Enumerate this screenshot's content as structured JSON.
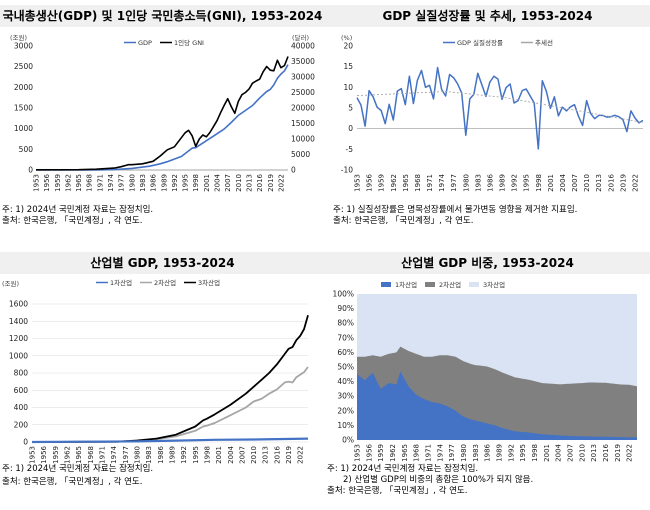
{
  "colors": {
    "blue": "#4472c4",
    "black": "#000000",
    "gray": "#a6a6a6",
    "dark_gray": "#7f7f7f",
    "light_blue": "#dae3f3",
    "title_bg": "#f0f0f0"
  },
  "panels": [
    {
      "id": "p1",
      "title": "국내총생산(GDP) 및 1인당 국민총소득(GNI), 1953-2024",
      "notes": [
        "주: 1) 2024년 국민계정 자료는 잠정치임.",
        "출처: 한국은행, 「국민계정」, 각 연도."
      ]
    },
    {
      "id": "p2",
      "title": "GDP 실질성장률 및 추세, 1953-2024",
      "notes": [
        "주: 1) 실질성장률은 명목성장률에서 물가변동 영향을 제거한 지표임.",
        "출처: 한국은행, 「국민계정」, 각 연도."
      ]
    },
    {
      "id": "p3",
      "title": "산업별 GDP, 1953-2024",
      "notes": [
        "주: 1) 2024년 국민계정 자료는 잠정치임.",
        "출처: 한국은행, 「국민계정」, 각 연도."
      ]
    },
    {
      "id": "p4",
      "title": "산업별 GDP 비중, 1953-2024",
      "notes": [
        "주: 1) 2024년 국민계정 자료는 잠정치임.",
        "2) 산업별 GDP의 비중의 총합은 100%가 되지 않음.",
        "출처: 한국은행, 「국민계정」, 각 연도."
      ]
    }
  ],
  "chart_data": [
    {
      "type": "line",
      "title": "국내총생산(GDP) 및 1인당 국민총소득(GNI), 1953-2024",
      "x_start": 1953,
      "x_end": 2024,
      "x_step": 3,
      "ylim_left": [
        0,
        3000
      ],
      "ylim_right": [
        0,
        40000
      ],
      "yticks_left": [
        "0",
        "500",
        "1000",
        "1500",
        "2000",
        "2500",
        "3000"
      ],
      "yticks_right": [
        "0",
        "5000",
        "10000",
        "15000",
        "20000",
        "25000",
        "30000",
        "35000",
        "40000"
      ],
      "unit_left": "(조원)",
      "unit_right": "(달러)",
      "series": [
        {
          "name": "GDP",
          "axis": "left",
          "color": "#4472c4",
          "points": [
            [
              1953,
              0
            ],
            [
              1970,
              3
            ],
            [
              1975,
              10
            ],
            [
              1980,
              39
            ],
            [
              1985,
              91
            ],
            [
              1988,
              150
            ],
            [
              1990,
              200
            ],
            [
              1994,
              330
            ],
            [
              1997,
              530
            ],
            [
              1998,
              540
            ],
            [
              2000,
              650
            ],
            [
              2003,
              820
            ],
            [
              2006,
              990
            ],
            [
              2008,
              1150
            ],
            [
              2010,
              1320
            ],
            [
              2012,
              1440
            ],
            [
              2014,
              1560
            ],
            [
              2016,
              1740
            ],
            [
              2018,
              1900
            ],
            [
              2019,
              1950
            ],
            [
              2020,
              2060
            ],
            [
              2021,
              2220
            ],
            [
              2022,
              2320
            ],
            [
              2023,
              2400
            ],
            [
              2024,
              2550
            ]
          ]
        },
        {
          "name": "1인당 GNI",
          "axis": "right",
          "color": "#000000",
          "points": [
            [
              1953,
              60
            ],
            [
              1965,
              110
            ],
            [
              1970,
              260
            ],
            [
              1975,
              600
            ],
            [
              1977,
              1050
            ],
            [
              1979,
              1700
            ],
            [
              1980,
              1700
            ],
            [
              1983,
              2000
            ],
            [
              1986,
              2800
            ],
            [
              1988,
              4500
            ],
            [
              1990,
              6500
            ],
            [
              1992,
              7500
            ],
            [
              1995,
              12000
            ],
            [
              1996,
              12800
            ],
            [
              1997,
              11000
            ],
            [
              1998,
              7600
            ],
            [
              1999,
              10000
            ],
            [
              2000,
              11300
            ],
            [
              2001,
              10700
            ],
            [
              2002,
              12100
            ],
            [
              2003,
              14000
            ],
            [
              2004,
              15900
            ],
            [
              2005,
              18500
            ],
            [
              2006,
              20800
            ],
            [
              2007,
              23000
            ],
            [
              2008,
              20500
            ],
            [
              2009,
              18300
            ],
            [
              2010,
              22100
            ],
            [
              2011,
              24300
            ],
            [
              2012,
              25000
            ],
            [
              2013,
              26100
            ],
            [
              2014,
              28000
            ],
            [
              2015,
              28700
            ],
            [
              2016,
              29300
            ],
            [
              2017,
              31700
            ],
            [
              2018,
              33400
            ],
            [
              2019,
              32200
            ],
            [
              2020,
              32000
            ],
            [
              2021,
              35400
            ],
            [
              2022,
              33000
            ],
            [
              2023,
              33700
            ],
            [
              2024,
              36600
            ]
          ]
        }
      ]
    },
    {
      "type": "line",
      "title": "GDP 실질성장률 및 추세, 1953-2024",
      "x_start": 1953,
      "x_end": 2024,
      "x_step": 3,
      "ylim": [
        -10,
        20
      ],
      "yticks": [
        "-10",
        "-5",
        "0",
        "5",
        "10",
        "15",
        "20"
      ],
      "unit": "(%)",
      "series": [
        {
          "name": "GDP 실질성장률",
          "color": "#4472c4",
          "values": [
            7.5,
            5.7,
            0.6,
            9.2,
            7.7,
            5.2,
            4.4,
            1.2,
            5.9,
            2.1,
            9.1,
            9.7,
            5.8,
            12.7,
            6.1,
            11.7,
            14.1,
            10.0,
            10.5,
            7.2,
            14.8,
            9.5,
            7.9,
            13.1,
            12.3,
            10.8,
            8.6,
            -1.6,
            7.2,
            8.3,
            13.4,
            10.6,
            7.8,
            11.3,
            12.7,
            12.0,
            7.1,
            9.9,
            10.8,
            6.2,
            6.8,
            9.2,
            9.6,
            7.9,
            6.2,
            -4.9,
            11.6,
            9.1,
            4.9,
            7.7,
            3.1,
            5.2,
            4.3,
            5.3,
            5.8,
            3.0,
            0.8,
            6.8,
            3.7,
            2.4,
            3.2,
            3.2,
            2.8,
            2.9,
            3.2,
            2.9,
            2.2,
            -0.7,
            4.3,
            2.6,
            1.4,
            2.0
          ]
        },
        {
          "name": "추세선",
          "color": "#a6a6a6",
          "points": [
            [
              1953,
              8.0
            ],
            [
              1975,
              9.0
            ],
            [
              1990,
              7.5
            ],
            [
              2024,
              1.5
            ]
          ]
        }
      ]
    },
    {
      "type": "line",
      "title": "산업별 GDP, 1953-2024",
      "x_start": 1953,
      "x_end": 2024,
      "x_step": 3,
      "ylim": [
        0,
        1600
      ],
      "yticks": [
        "0",
        "200",
        "400",
        "600",
        "800",
        "1000",
        "1200",
        "1400",
        "1600"
      ],
      "unit": "(조원)",
      "series": [
        {
          "name": "1차산업",
          "color": "#4472c4",
          "points": [
            [
              1953,
              0
            ],
            [
              1980,
              7
            ],
            [
              1990,
              16
            ],
            [
              2000,
              25
            ],
            [
              2010,
              29
            ],
            [
              2024,
              40
            ]
          ]
        },
        {
          "name": "2차산업",
          "color": "#a6a6a6",
          "points": [
            [
              1953,
              0
            ],
            [
              1975,
              4
            ],
            [
              1980,
              13
            ],
            [
              1985,
              32
            ],
            [
              1990,
              65
            ],
            [
              1995,
              130
            ],
            [
              1997,
              180
            ],
            [
              1998,
              190
            ],
            [
              2000,
              220
            ],
            [
              2004,
              310
            ],
            [
              2008,
              400
            ],
            [
              2010,
              470
            ],
            [
              2012,
              500
            ],
            [
              2014,
              560
            ],
            [
              2016,
              610
            ],
            [
              2018,
              690
            ],
            [
              2019,
              700
            ],
            [
              2020,
              690
            ],
            [
              2021,
              750
            ],
            [
              2022,
              780
            ],
            [
              2023,
              810
            ],
            [
              2024,
              870
            ]
          ]
        },
        {
          "name": "3차산업",
          "color": "#000000",
          "points": [
            [
              1953,
              0
            ],
            [
              1975,
              4
            ],
            [
              1980,
              17
            ],
            [
              1985,
              40
            ],
            [
              1990,
              85
            ],
            [
              1995,
              180
            ],
            [
              1997,
              250
            ],
            [
              1998,
              270
            ],
            [
              2000,
              320
            ],
            [
              2004,
              430
            ],
            [
              2008,
              560
            ],
            [
              2010,
              640
            ],
            [
              2012,
              720
            ],
            [
              2014,
              800
            ],
            [
              2016,
              900
            ],
            [
              2018,
              1020
            ],
            [
              2019,
              1080
            ],
            [
              2020,
              1100
            ],
            [
              2021,
              1180
            ],
            [
              2022,
              1230
            ],
            [
              2023,
              1310
            ],
            [
              2024,
              1470
            ]
          ]
        }
      ]
    },
    {
      "type": "area",
      "title": "산업별 GDP 비중, 1953-2024",
      "x_start": 1953,
      "x_end": 2024,
      "x_step": 3,
      "ylim": [
        0,
        100
      ],
      "yticks": [
        "0%",
        "10%",
        "20%",
        "30%",
        "40%",
        "50%",
        "60%",
        "70%",
        "80%",
        "90%",
        "100%"
      ],
      "stacked": true,
      "series": [
        {
          "name": "1차산업",
          "color": "#4472c4",
          "points": [
            [
              1953,
              45
            ],
            [
              1955,
              41
            ],
            [
              1957,
              46
            ],
            [
              1959,
              35
            ],
            [
              1961,
              39
            ],
            [
              1963,
              38
            ],
            [
              1964,
              47
            ],
            [
              1966,
              37
            ],
            [
              1968,
              31
            ],
            [
              1970,
              28
            ],
            [
              1972,
              26
            ],
            [
              1974,
              25
            ],
            [
              1976,
              23
            ],
            [
              1978,
              20
            ],
            [
              1980,
              16
            ],
            [
              1982,
              14
            ],
            [
              1985,
              12
            ],
            [
              1988,
              10
            ],
            [
              1990,
              8
            ],
            [
              1993,
              6
            ],
            [
              1997,
              5
            ],
            [
              2000,
              4
            ],
            [
              2005,
              3
            ],
            [
              2010,
              2.5
            ],
            [
              2024,
              1.8
            ]
          ]
        },
        {
          "name": "2차산업",
          "color": "#808080",
          "points": [
            [
              1953,
              12
            ],
            [
              1955,
              16
            ],
            [
              1957,
              12
            ],
            [
              1959,
              22
            ],
            [
              1961,
              20
            ],
            [
              1963,
              22
            ],
            [
              1964,
              17
            ],
            [
              1966,
              24
            ],
            [
              1968,
              28
            ],
            [
              1970,
              29
            ],
            [
              1972,
              31
            ],
            [
              1974,
              33
            ],
            [
              1976,
              35
            ],
            [
              1978,
              37
            ],
            [
              1980,
              38
            ],
            [
              1983,
              38
            ],
            [
              1986,
              39
            ],
            [
              1990,
              38
            ],
            [
              1993,
              37
            ],
            [
              1997,
              36
            ],
            [
              2000,
              35
            ],
            [
              2004,
              35
            ],
            [
              2008,
              36
            ],
            [
              2012,
              37
            ],
            [
              2016,
              37
            ],
            [
              2020,
              36
            ],
            [
              2022,
              36
            ],
            [
              2024,
              35
            ]
          ]
        },
        {
          "name": "3차산업",
          "color": "#dae3f3",
          "points": [
            [
              1953,
              43
            ],
            [
              1975,
              42
            ],
            [
              2000,
              61
            ],
            [
              2024,
              63
            ]
          ]
        }
      ]
    }
  ]
}
